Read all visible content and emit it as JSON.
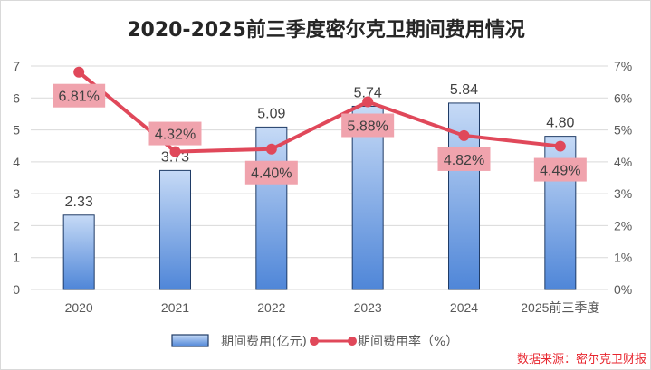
{
  "chart_data": {
    "type": "bar+line",
    "title": "2020-2025前三季度密尔克卫期间费用情况",
    "categories": [
      "2020",
      "2021",
      "2022",
      "2023",
      "2024",
      "2025前三季度"
    ],
    "series": [
      {
        "name": "期间费用(亿元)",
        "type": "bar",
        "axis": "left",
        "values": [
          2.33,
          3.73,
          5.09,
          5.74,
          5.84,
          4.8
        ],
        "labels": [
          "2.33",
          "3.73",
          "5.09",
          "5.74",
          "5.84",
          "4.80"
        ]
      },
      {
        "name": "期间费用率（%）",
        "type": "line",
        "axis": "right",
        "values": [
          6.81,
          4.32,
          4.4,
          5.88,
          4.82,
          4.49
        ],
        "labels": [
          "6.81%",
          "4.32%",
          "4.40%",
          "5.88%",
          "4.82%",
          "4.49%"
        ]
      }
    ],
    "ylim": [
      0,
      7
    ],
    "yticks": [
      "0",
      "1",
      "2",
      "3",
      "4",
      "5",
      "6",
      "7"
    ],
    "y2lim": [
      0,
      7
    ],
    "y2ticks": [
      "0%",
      "1%",
      "2%",
      "3%",
      "4%",
      "5%",
      "6%",
      "7%"
    ],
    "grid": true,
    "legend": "bottom",
    "colors": {
      "bar_top": "#c6daf6",
      "bar_bottom": "#4f86d8",
      "line": "#e0485a",
      "label_bg": "#f0a3ad"
    }
  },
  "source": "数据来源：密尔克卫财报"
}
